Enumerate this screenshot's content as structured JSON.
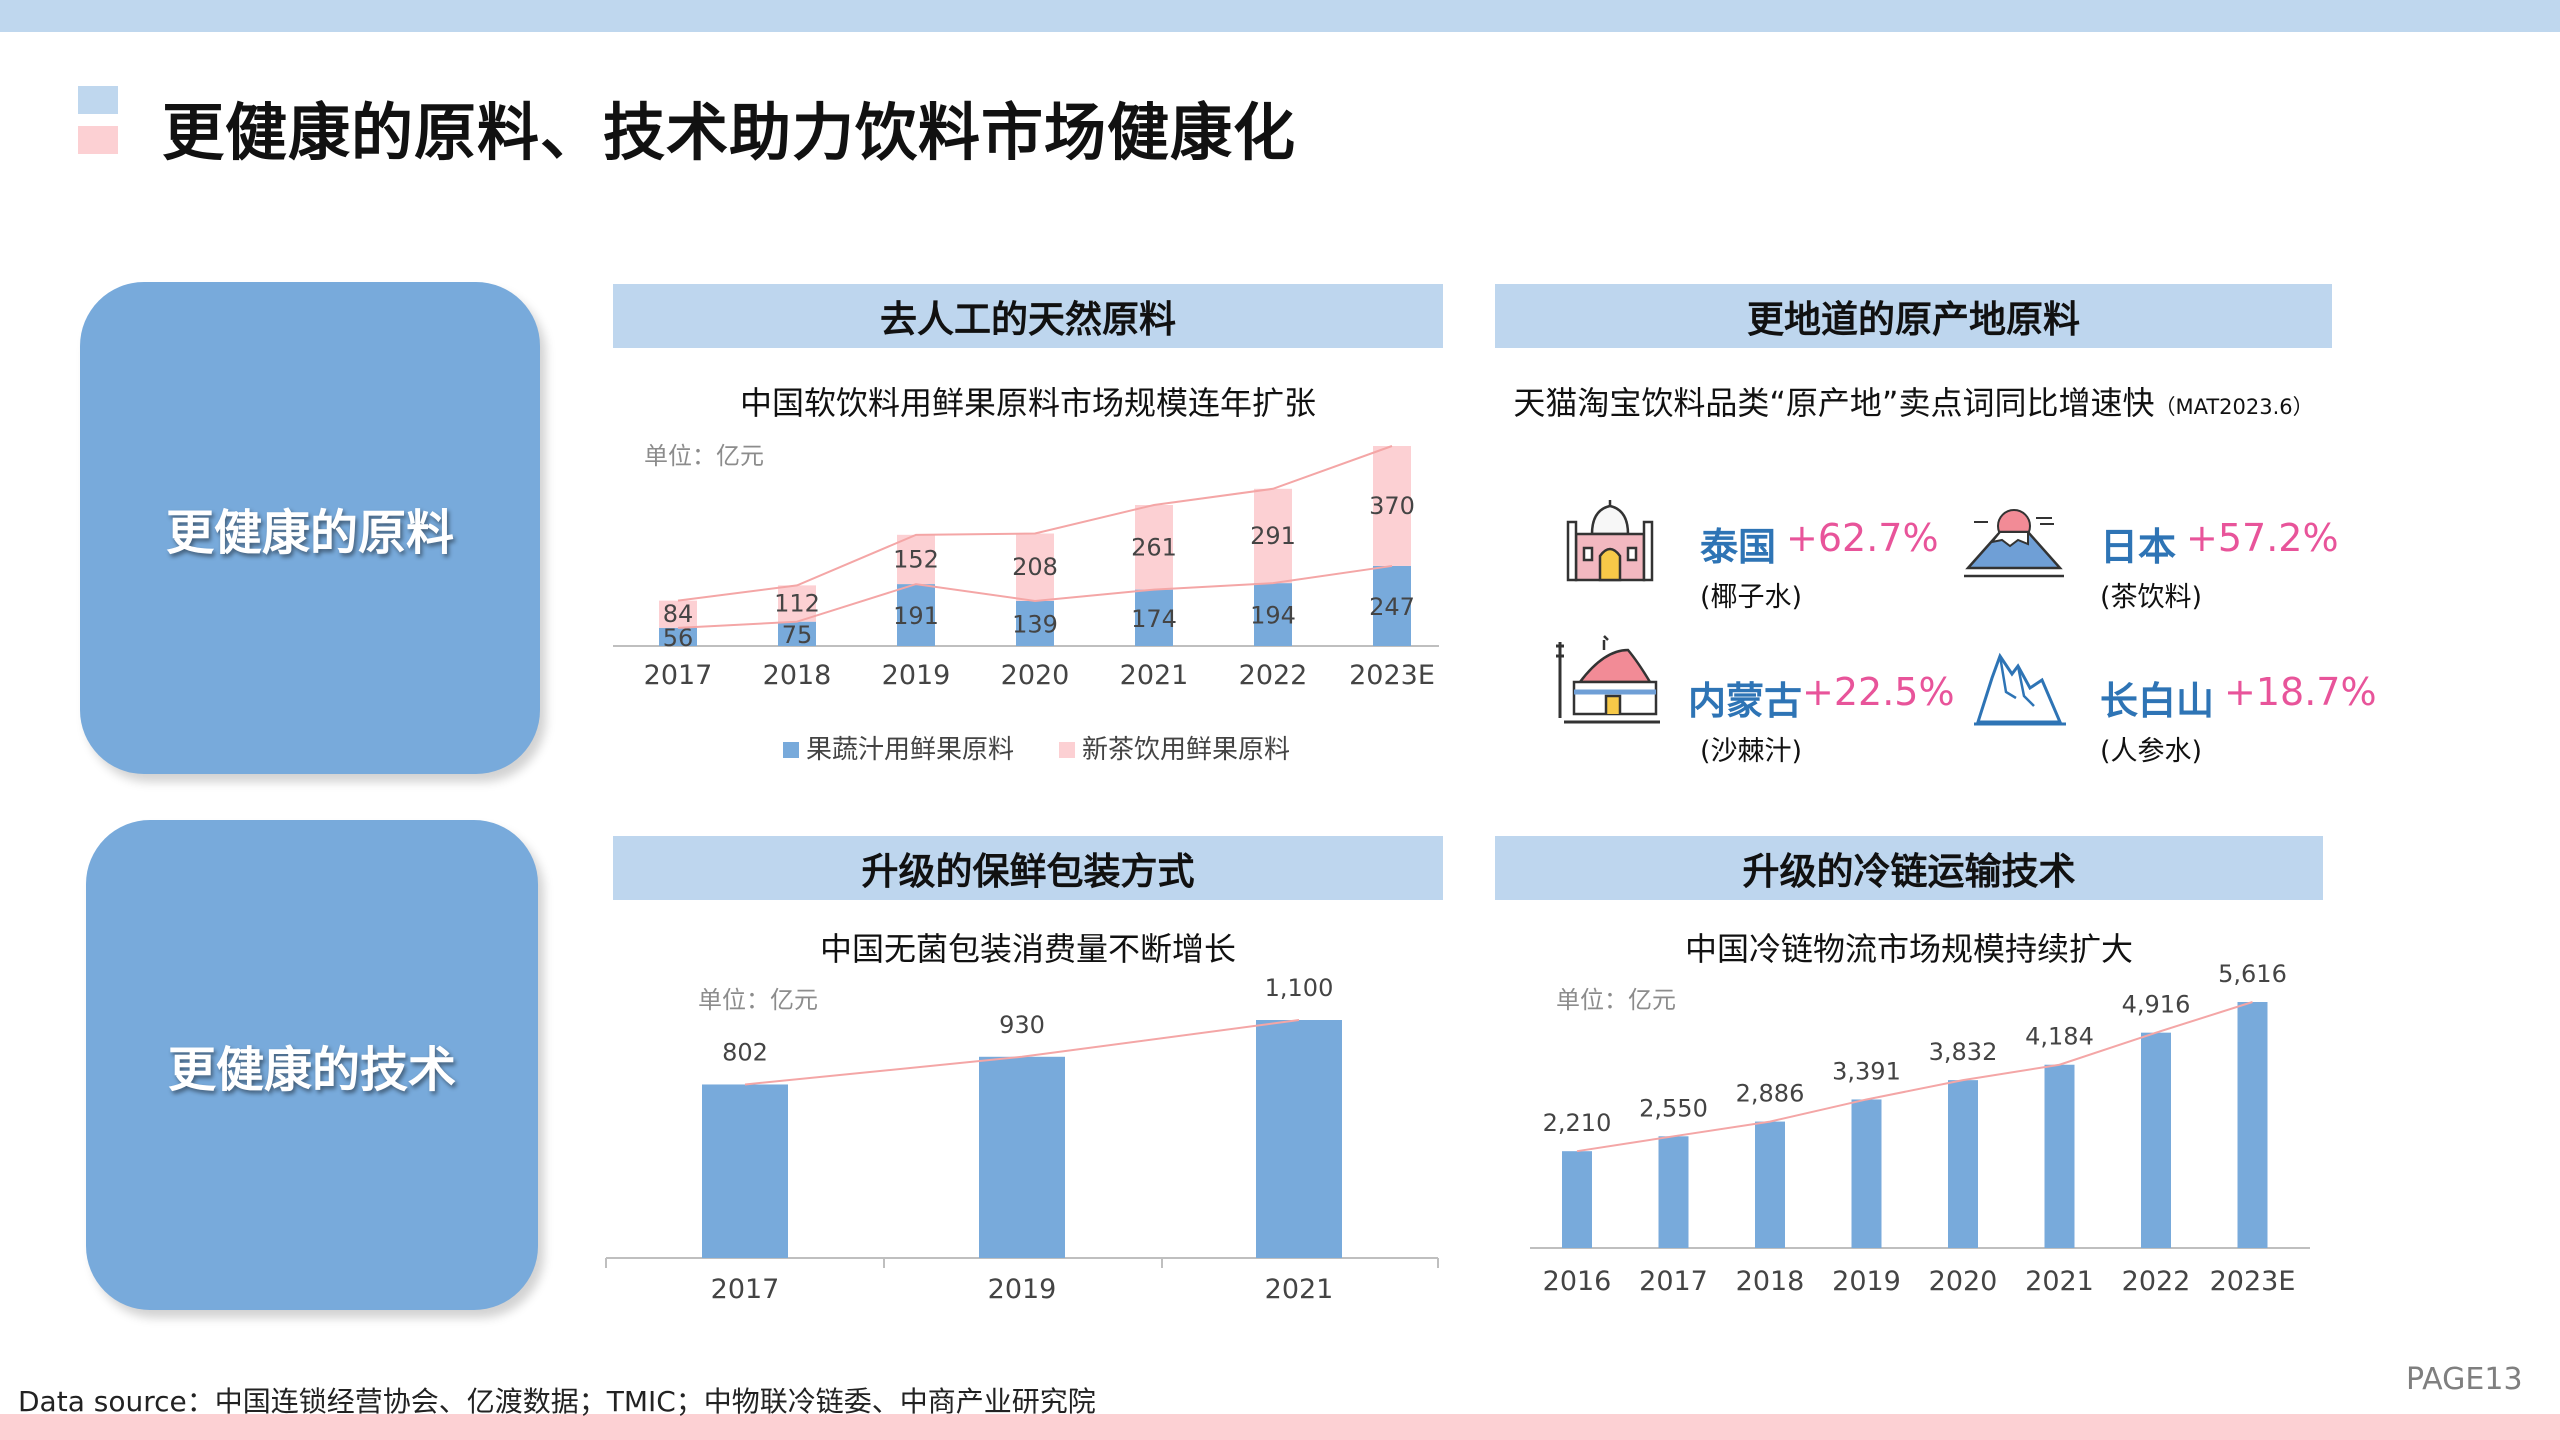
{
  "page": {
    "title": "更健康的原料、技术助力饮料市场健康化",
    "categories": [
      "更健康的原料",
      "更健康的技术"
    ],
    "footer": "Data source：中国连锁经营协会、亿渡数据；TMIC；中物联冷链委、中商产业研究院",
    "page_number": "PAGE13"
  },
  "sections": {
    "natural": {
      "header": "去人工的天然原料",
      "subtitle": "中国软饮料用鲜果原料市场规模连年扩张",
      "unit": "单位：亿元"
    },
    "origin": {
      "header": "更地道的原产地原料",
      "subtitle": "天猫淘宝饮料品类“原产地”卖点词同比增速快",
      "subtitle_note": "（MAT2023.6）"
    },
    "packaging": {
      "header": "升级的保鲜包装方式",
      "subtitle": "中国无菌包装消费量不断增长",
      "unit": "单位：亿元"
    },
    "coldchain": {
      "header": "升级的冷链运输技术",
      "subtitle": "中国冷链物流市场规模持续扩大",
      "unit": "单位：亿元"
    }
  },
  "origins": [
    {
      "name": "泰国",
      "pct": "+62.7%",
      "note": "(椰子水)",
      "icon": "taj-mahal-icon"
    },
    {
      "name": "日本",
      "pct": "+57.2%",
      "note": "(茶饮料)",
      "icon": "mount-fuji-icon"
    },
    {
      "name": "内蒙古",
      "pct": "+22.5%",
      "note": "(沙棘汁)",
      "icon": "mongolian-yurt-icon"
    },
    {
      "name": "长白山",
      "pct": "+18.7%",
      "note": "(人参水)",
      "icon": "mountain-icon"
    }
  ],
  "colors": {
    "blue": "#78aadb",
    "pink": "#fcd0d3",
    "header_bg": "#bed6ee",
    "trend": "#f4a6a6",
    "accent_pct": "#e8549a",
    "place_name": "#2e74b5"
  },
  "chart_data": [
    {
      "type": "bar",
      "stacked": true,
      "title": "中国软饮料用鲜果原料市场规模连年扩张",
      "unit": "单位：亿元",
      "categories": [
        "2017",
        "2018",
        "2019",
        "2020",
        "2021",
        "2022",
        "2023E"
      ],
      "series": [
        {
          "name": "果蔬汁用鲜果原料",
          "color": "#78aadb",
          "values": [
            56,
            75,
            191,
            139,
            174,
            194,
            247
          ]
        },
        {
          "name": "新茶饮用鲜果原料",
          "color": "#fcd0d3",
          "values": [
            84,
            112,
            152,
            208,
            261,
            291,
            370
          ]
        }
      ],
      "ylim": [
        0,
        617
      ],
      "trend_lines": true,
      "legend": "bottom"
    },
    {
      "type": "bar",
      "title": "中国无菌包装消费量不断增长",
      "unit": "单位：亿元",
      "categories": [
        "2017",
        "2019",
        "2021"
      ],
      "values": [
        802,
        930,
        1100
      ],
      "value_labels": [
        "802",
        "930",
        "1,100"
      ],
      "ylim": [
        0,
        1100
      ],
      "trend_line": true
    },
    {
      "type": "bar",
      "title": "中国冷链物流市场规模持续扩大",
      "unit": "单位：亿元",
      "categories": [
        "2016",
        "2017",
        "2018",
        "2019",
        "2020",
        "2021",
        "2022",
        "2023E"
      ],
      "values": [
        2210,
        2550,
        2886,
        3391,
        3832,
        4184,
        4916,
        5616
      ],
      "value_labels": [
        "2,210",
        "2,550",
        "2,886",
        "3,391",
        "3,832",
        "4,184",
        "4,916",
        "5,616"
      ],
      "ylim": [
        0,
        5616
      ],
      "trend_line": true
    }
  ]
}
